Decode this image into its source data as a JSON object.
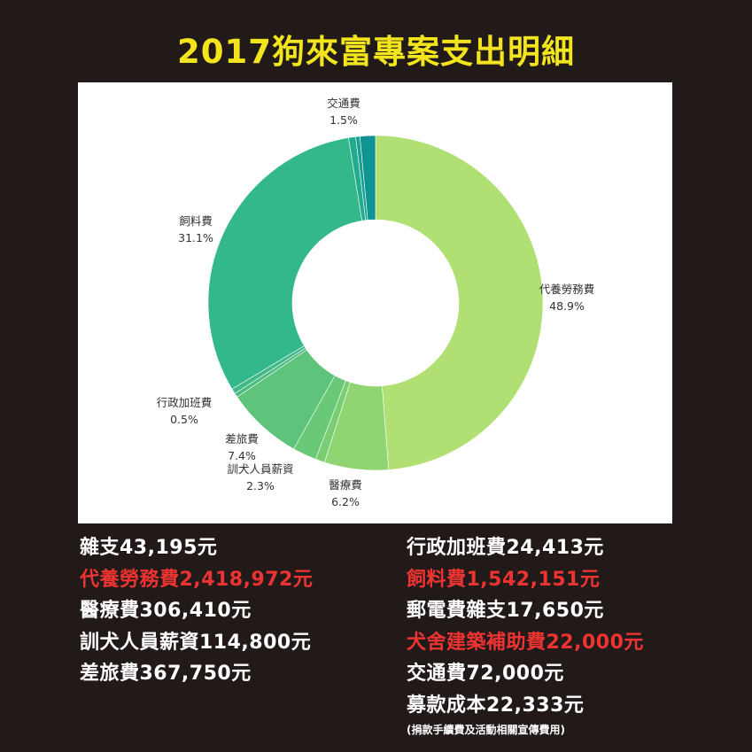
{
  "title": "2017狗來富專案支出明細",
  "chart_data": {
    "type": "pie",
    "title": "",
    "series": [
      {
        "label": "代養勞務費",
        "value": 48.9,
        "pct_text": "48.9%",
        "color": "#b0df73",
        "show_label": true
      },
      {
        "label": "醫療費",
        "value": 6.2,
        "pct_text": "6.2%",
        "color": "#8fd572",
        "show_label": true
      },
      {
        "label": "",
        "value": 0.9,
        "pct_text": "",
        "color": "#79ce73",
        "show_label": false
      },
      {
        "label": "訓犬人員薪資",
        "value": 2.3,
        "pct_text": "2.3%",
        "color": "#6ac977",
        "show_label": true
      },
      {
        "label": "差旅費",
        "value": 7.4,
        "pct_text": "7.4%",
        "color": "#5ec47b",
        "show_label": true
      },
      {
        "label": "",
        "value": 0.4,
        "pct_text": "",
        "color": "#4cbc83",
        "show_label": false
      },
      {
        "label": "行政加班費",
        "value": 0.5,
        "pct_text": "0.5%",
        "color": "#42b886",
        "show_label": true
      },
      {
        "label": "飼料費",
        "value": 31.1,
        "pct_text": "31.1%",
        "color": "#33b88b",
        "show_label": true
      },
      {
        "label": "",
        "value": 0.7,
        "pct_text": "",
        "color": "#23ab8e",
        "show_label": false
      },
      {
        "label": "",
        "value": 0.4,
        "pct_text": "",
        "color": "#18a08f",
        "show_label": false
      },
      {
        "label": "交通費",
        "value": 1.5,
        "pct_text": "1.5%",
        "color": "#0f9393",
        "show_label": true
      }
    ]
  },
  "left_items": [
    {
      "text": "雜支43,195元",
      "highlight": false
    },
    {
      "text": "代養勞務費2,418,972元",
      "highlight": true
    },
    {
      "text": "醫療費306,410元",
      "highlight": false
    },
    {
      "text": "訓犬人員薪資114,800元",
      "highlight": false
    },
    {
      "text": "差旅費367,750元",
      "highlight": false
    }
  ],
  "right_items": [
    {
      "text": "行政加班費24,413元",
      "highlight": false
    },
    {
      "text": "飼料費1,542,151元",
      "highlight": true
    },
    {
      "text": "郵電費雜支17,650元",
      "highlight": false
    },
    {
      "text": "犬舍建築補助費22,000元",
      "highlight": true
    },
    {
      "text": "交通費72,000元",
      "highlight": false
    },
    {
      "text": "募款成本22,333元",
      "highlight": false
    }
  ],
  "footnote": "(捐款手續費及活動相關宣傳費用)"
}
